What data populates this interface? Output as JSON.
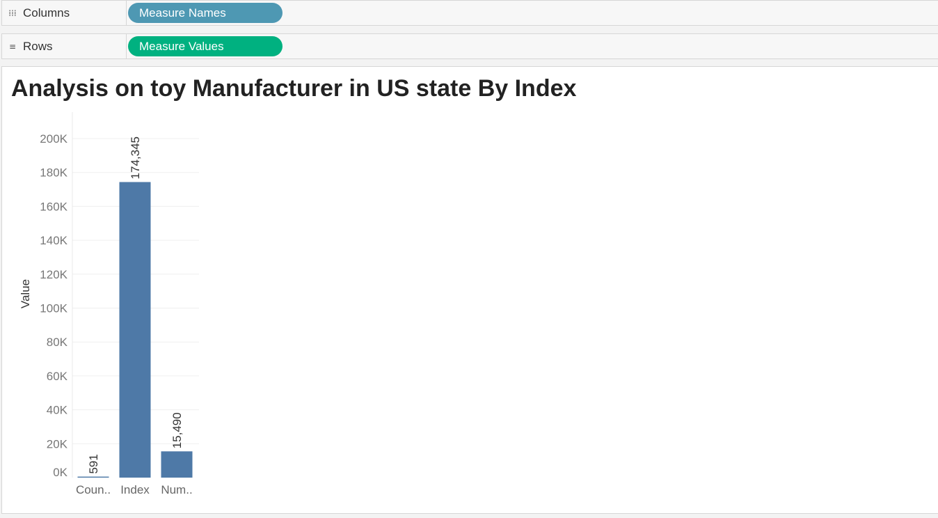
{
  "shelves": {
    "columns": {
      "icon": "columns-icon",
      "label": "Columns",
      "pill": "Measure Names",
      "pill_color": "#4e98b3"
    },
    "rows": {
      "icon": "rows-icon",
      "label": "Rows",
      "pill": "Measure Values",
      "pill_color": "#00b180"
    }
  },
  "chart_data": {
    "type": "bar",
    "title": "Analysis on toy Manufacturer in US state By Index",
    "xlabel": "",
    "ylabel": "Value",
    "categories": [
      "Coun..",
      "Index",
      "Num.."
    ],
    "values": [
      591,
      174345,
      15490
    ],
    "data_labels": [
      "591",
      "174,345",
      "15,490"
    ],
    "ylim": [
      0,
      200000
    ],
    "yticks": [
      0,
      20000,
      40000,
      60000,
      80000,
      100000,
      120000,
      140000,
      160000,
      180000,
      200000
    ],
    "ytick_labels": [
      "0K",
      "20K",
      "40K",
      "60K",
      "80K",
      "100K",
      "120K",
      "140K",
      "160K",
      "180K",
      "200K"
    ],
    "bar_color": "#4e79a7",
    "grid": true,
    "legend": "none"
  }
}
